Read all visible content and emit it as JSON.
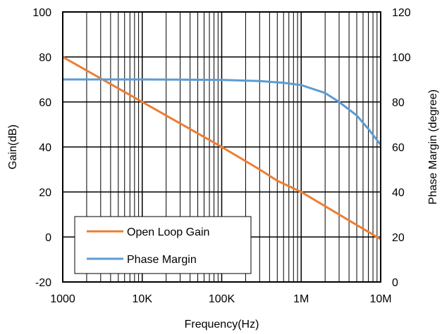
{
  "chart_data": {
    "type": "line",
    "x_scale": "log",
    "xlabel": "Frequency(Hz)",
    "ylabel_left": "Gain(dB)",
    "ylabel_right": "Phase Margin (degree)",
    "xlim": [
      1000,
      10000000
    ],
    "ylim_left": [
      -20,
      100
    ],
    "ylim_right": [
      0,
      120
    ],
    "x_ticks": [
      {
        "value": 1000,
        "label": "1000"
      },
      {
        "value": 10000,
        "label": "10K"
      },
      {
        "value": 100000,
        "label": "100K"
      },
      {
        "value": 1000000,
        "label": "1M"
      },
      {
        "value": 10000000,
        "label": "10M"
      }
    ],
    "y_ticks_left": [
      "-20",
      "0",
      "20",
      "40",
      "60",
      "80",
      "100"
    ],
    "y_ticks_right": [
      "0",
      "20",
      "40",
      "60",
      "80",
      "100",
      "120"
    ],
    "grid": true,
    "legend_position": "bottom-left",
    "series": [
      {
        "name": "Open Loop Gain",
        "axis": "left",
        "color": "#ED7D31",
        "points": [
          [
            1000,
            80
          ],
          [
            10000,
            60
          ],
          [
            100000,
            40
          ],
          [
            300000,
            30
          ],
          [
            500000,
            25
          ],
          [
            1000000,
            20
          ],
          [
            10000000,
            -1
          ]
        ]
      },
      {
        "name": "Phase Margin",
        "axis": "right",
        "color": "#5B9BD5",
        "points": [
          [
            1000,
            90
          ],
          [
            10000,
            90
          ],
          [
            100000,
            89.8
          ],
          [
            300000,
            89.3
          ],
          [
            600000,
            88.5
          ],
          [
            1000000,
            87.5
          ],
          [
            2000000,
            84
          ],
          [
            3000000,
            80
          ],
          [
            5000000,
            74
          ],
          [
            7000000,
            68
          ],
          [
            10000000,
            61
          ]
        ]
      }
    ]
  }
}
